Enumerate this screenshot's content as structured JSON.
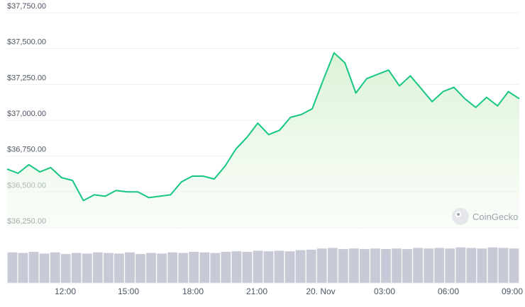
{
  "chart_data": {
    "type": "area",
    "series": [
      {
        "x": [
          "09:45",
          "10:15",
          "10:45",
          "11:15",
          "11:45",
          "12:15",
          "12:45",
          "13:15",
          "13:45",
          "14:15",
          "14:45",
          "15:15",
          "15:45",
          "16:15",
          "16:45",
          "17:15",
          "17:45",
          "18:15",
          "18:45",
          "19:15",
          "19:45",
          "20:15",
          "20:45",
          "21:15",
          "21:45",
          "22:15",
          "22:45",
          "23:15",
          "23:45",
          "00:15",
          "00:45",
          "01:15",
          "01:45",
          "02:15",
          "02:45",
          "03:15",
          "03:45",
          "04:15",
          "04:45",
          "05:15",
          "05:45",
          "06:15",
          "06:45",
          "07:15",
          "07:45",
          "08:15",
          "08:45",
          "09:15"
        ],
        "values": [
          36660,
          36630,
          36690,
          36640,
          36670,
          36600,
          36580,
          36440,
          36480,
          36470,
          36510,
          36500,
          36500,
          36460,
          36470,
          36480,
          36570,
          36610,
          36610,
          36590,
          36680,
          36800,
          36880,
          36980,
          36900,
          36930,
          37020,
          37040,
          37080,
          37280,
          37470,
          37400,
          37190,
          37290,
          37320,
          37350,
          37240,
          37310,
          37220,
          37130,
          37200,
          37230,
          37150,
          37090,
          37160,
          37100,
          37200,
          37150
        ]
      }
    ],
    "x_ticks": [
      "12:00",
      "15:00",
      "18:00",
      "21:00",
      "20. Nov",
      "03:00",
      "06:00",
      "09:00"
    ],
    "y_ticks": [
      "$36,250.00",
      "$36,500.00",
      "$36,750.00",
      "$37,000.00",
      "$37,250.00",
      "$37,500.00",
      "$37,750.00"
    ],
    "ylim": [
      36250,
      37750
    ],
    "volume": [
      55,
      54,
      56,
      53,
      55,
      52,
      54,
      53,
      55,
      54,
      53,
      55,
      52,
      54,
      53,
      55,
      54,
      56,
      55,
      54,
      56,
      57,
      56,
      58,
      57,
      58,
      57,
      59,
      60,
      62,
      63,
      61,
      62,
      61,
      62,
      61,
      62,
      61,
      63,
      62,
      63,
      62,
      64,
      63,
      62,
      64,
      63,
      62
    ],
    "grid": true,
    "legend": "none",
    "line_color": "#16c784",
    "area_top_color": "#d9f2d3",
    "volume_color": "#c7cad6"
  },
  "watermark": {
    "label": "CoinGecko"
  }
}
